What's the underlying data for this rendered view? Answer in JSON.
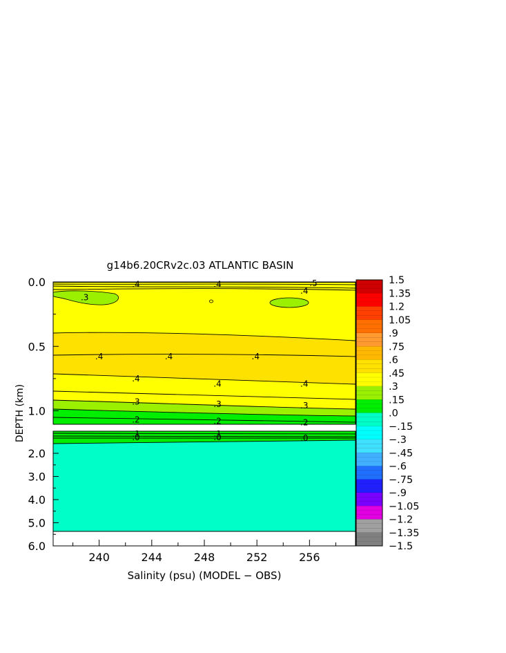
{
  "chart_data": {
    "type": "heatmap",
    "title": "g14b6.20CRv2c.03 ATLANTIC BASIN",
    "xlabel": "Salinity (psu) (MODEL − OBS)",
    "ylabel": "DEPTH (km)",
    "xlim": [
      236.5,
      259.5
    ],
    "x_ticks": [
      240,
      244,
      248,
      252,
      256
    ],
    "upper_panel": {
      "ylim": [
        0.0,
        1.1
      ],
      "y_ticks": [
        "0.0",
        "0.5",
        "1.0"
      ],
      "y_tick_values": [
        0.0,
        0.5,
        1.0
      ]
    },
    "lower_panel": {
      "ylim": [
        1.2,
        6.0
      ],
      "y_ticks": [
        "2.0",
        "3.0",
        "4.0",
        "5.0",
        "6.0"
      ],
      "y_tick_values": [
        2.0,
        3.0,
        4.0,
        5.0,
        6.0
      ]
    },
    "colorbar": {
      "min": -1.5,
      "max": 1.5,
      "step": 0.15,
      "labels": [
        "1.5",
        "1.35",
        "1.2",
        "1.05",
        ".9",
        ".75",
        ".6",
        ".45",
        ".3",
        ".15",
        ".0",
        "−.15",
        "−.3",
        "−.45",
        "−.6",
        "−.75",
        "−.9",
        "−1.05",
        "−1.2",
        "−1.35",
        "−1.5"
      ],
      "label_values": [
        1.5,
        1.35,
        1.2,
        1.05,
        0.9,
        0.75,
        0.6,
        0.45,
        0.3,
        0.15,
        0.0,
        -0.15,
        -0.3,
        -0.45,
        -0.6,
        -0.75,
        -0.9,
        -1.05,
        -1.2,
        -1.35,
        -1.5
      ]
    },
    "contour_labels": [
      {
        "text": ".4",
        "x": 242.8,
        "depth": 0.02
      },
      {
        "text": ".4",
        "x": 249.0,
        "depth": 0.02
      },
      {
        "text": ".4",
        "x": 255.6,
        "depth": 0.07
      },
      {
        "text": ".5",
        "x": 256.3,
        "depth": 0.01
      },
      {
        "text": ".3",
        "x": 238.9,
        "depth": 0.12
      },
      {
        "text": ".4",
        "x": 240.0,
        "depth": 0.58
      },
      {
        "text": ".4",
        "x": 245.3,
        "depth": 0.58
      },
      {
        "text": ".4",
        "x": 251.9,
        "depth": 0.58
      },
      {
        "text": ".4",
        "x": 242.8,
        "depth": 0.75
      },
      {
        "text": ".4",
        "x": 249.0,
        "depth": 0.79
      },
      {
        "text": ".4",
        "x": 255.6,
        "depth": 0.79
      },
      {
        "text": ".3",
        "x": 242.8,
        "depth": 0.93
      },
      {
        "text": ".3",
        "x": 249.0,
        "depth": 0.95
      },
      {
        "text": ".3",
        "x": 255.6,
        "depth": 0.96
      },
      {
        "text": ".2",
        "x": 242.8,
        "depth": 1.07
      },
      {
        "text": ".2",
        "x": 249.0,
        "depth": 1.08
      },
      {
        "text": ".2",
        "x": 255.6,
        "depth": 1.09
      },
      {
        "text": ".1",
        "x": 242.8,
        "depth": 1.3
      },
      {
        "text": ".1",
        "x": 249.0,
        "depth": 1.3
      },
      {
        "text": ".0",
        "x": 242.8,
        "depth": 1.43
      },
      {
        "text": ".0",
        "x": 249.0,
        "depth": 1.43
      },
      {
        "text": ".0",
        "x": 255.6,
        "depth": 1.45
      }
    ],
    "colors": {
      "v0.30_0.45": "#ffff00",
      "v0.45_0.60": "#ffe100",
      "v0.15_0.30": "#9af000",
      "v0.00_0.15": "#00ee00",
      "v-0.15_0.00": "#00ffc8"
    }
  }
}
